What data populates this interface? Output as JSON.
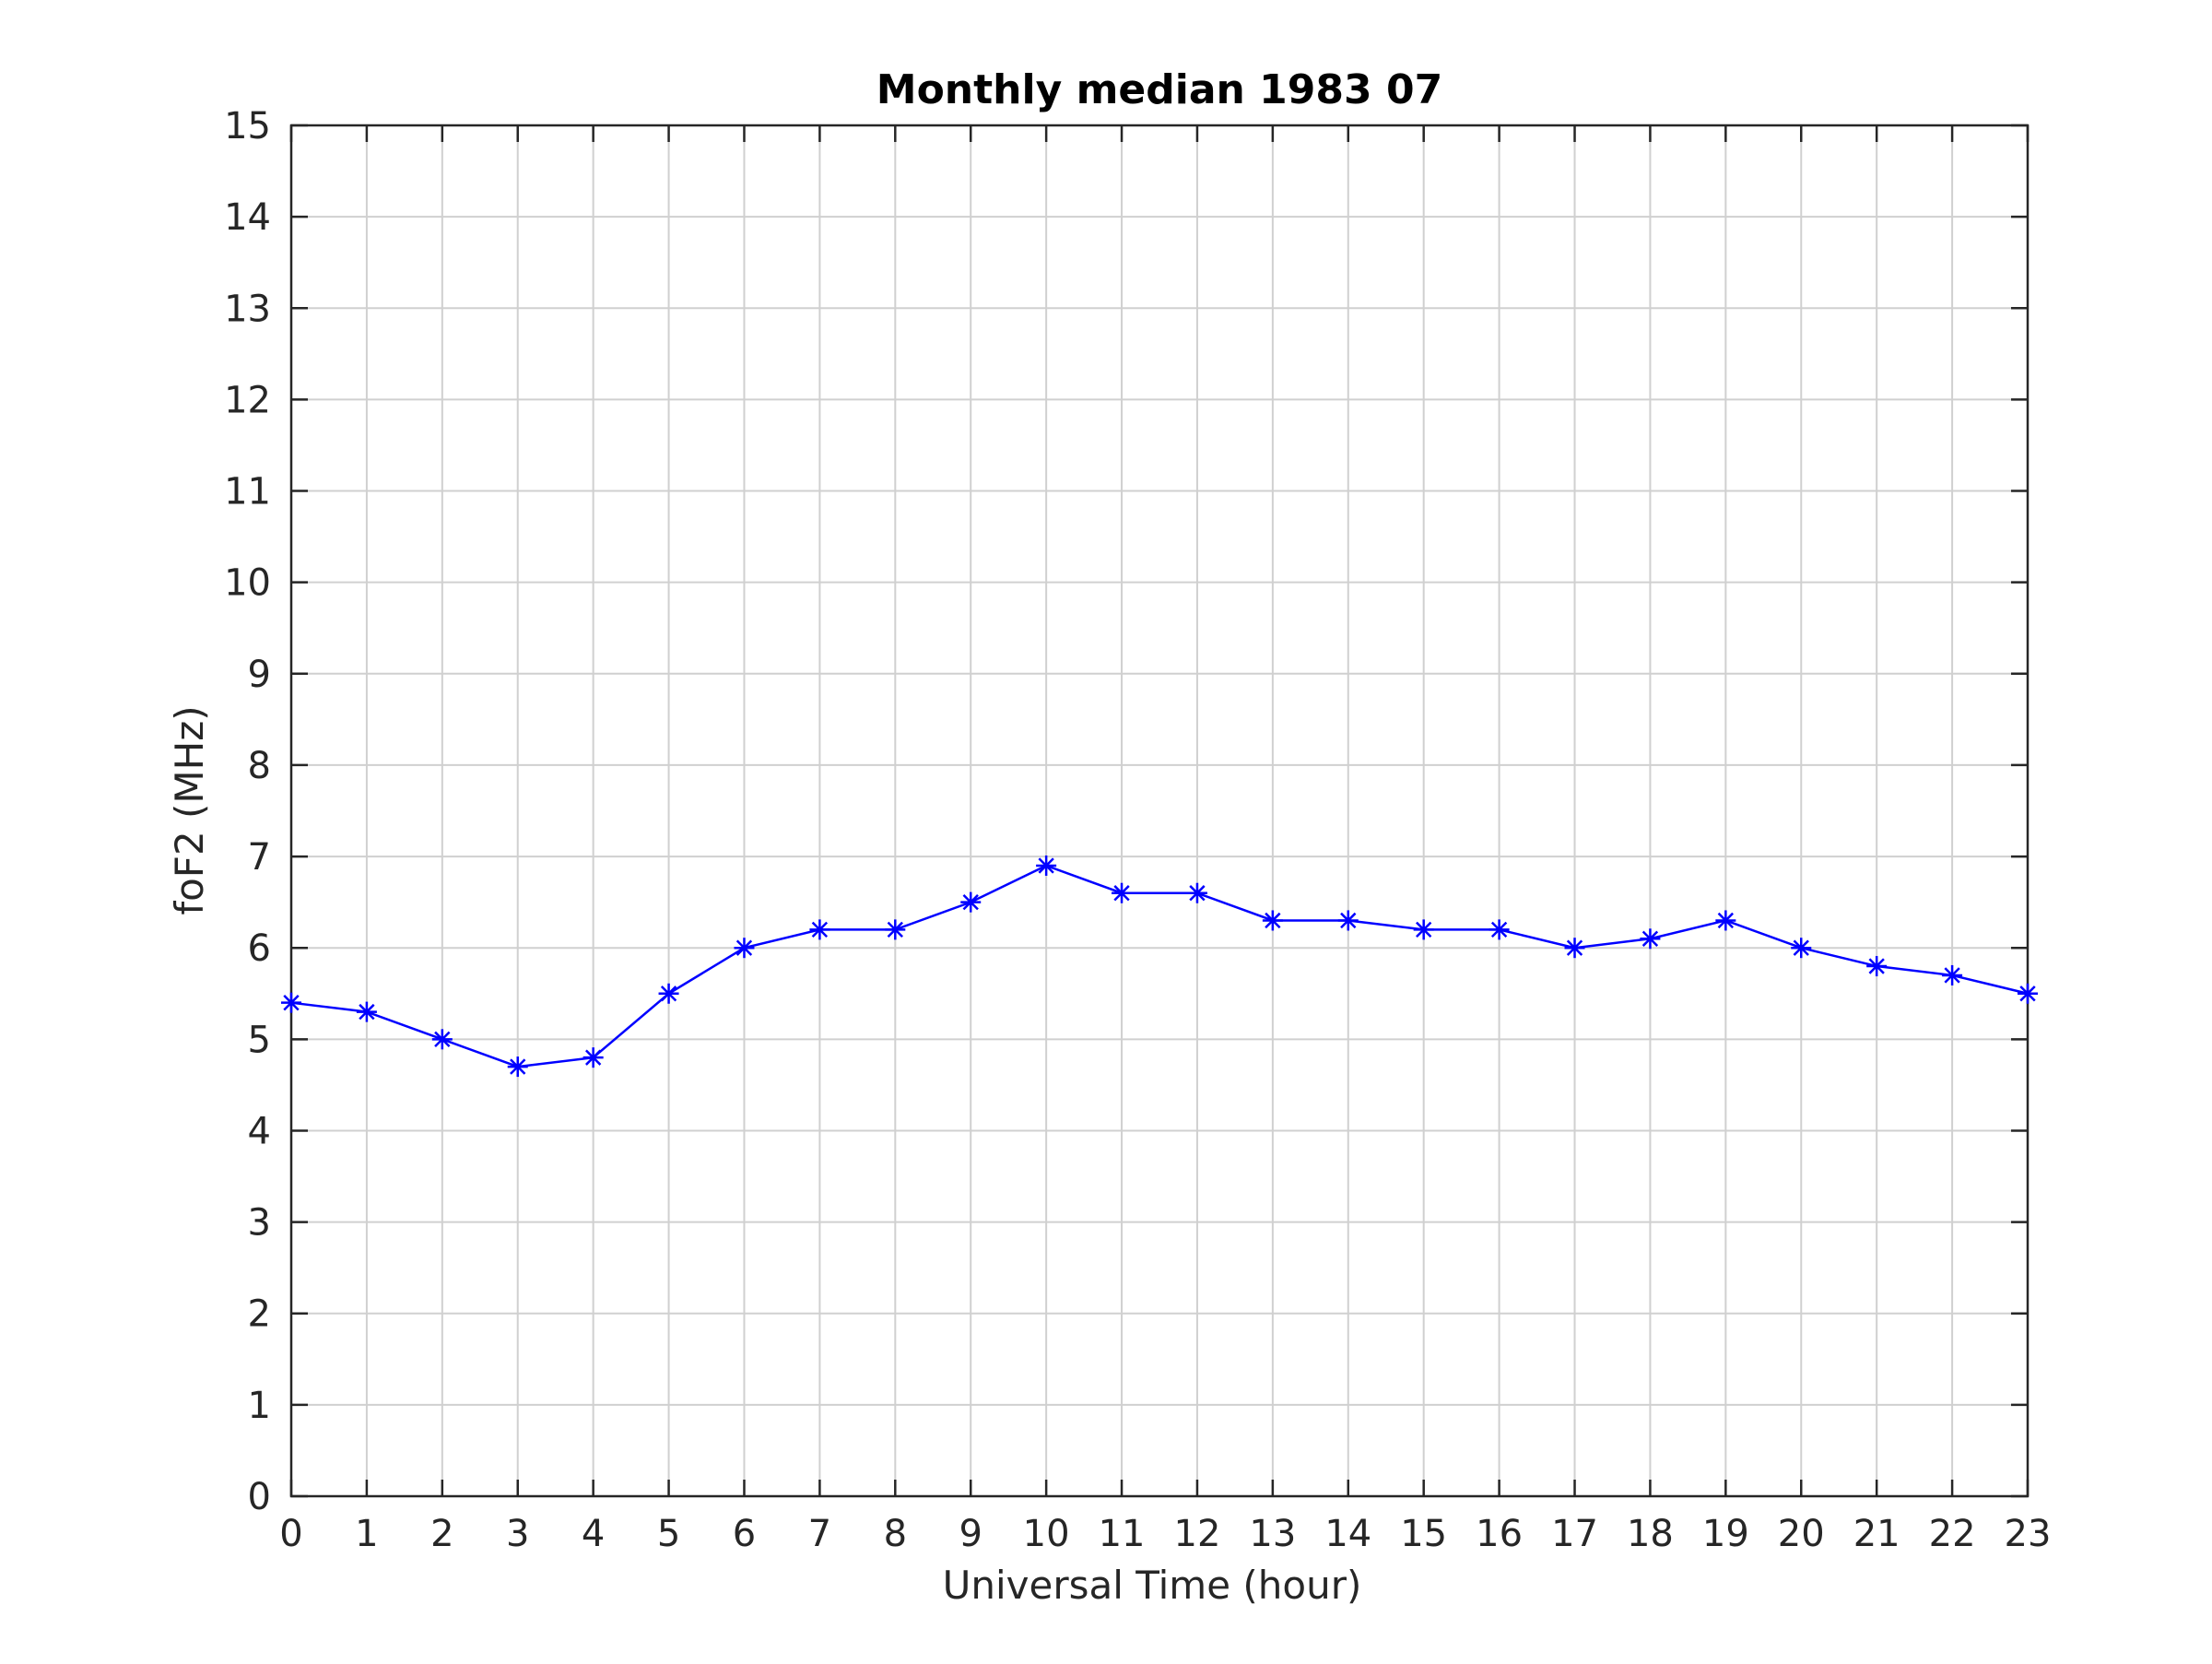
{
  "chart_data": {
    "type": "line",
    "title": "Monthly median 1983 07",
    "xlabel": "Universal Time (hour)",
    "ylabel": "foF2 (MHz)",
    "xlim": [
      0,
      23
    ],
    "ylim": [
      0,
      15
    ],
    "x_ticks": [
      "0",
      "1",
      "2",
      "3",
      "4",
      "5",
      "6",
      "7",
      "8",
      "9",
      "10",
      "11",
      "12",
      "13",
      "14",
      "15",
      "16",
      "17",
      "18",
      "19",
      "20",
      "21",
      "22",
      "23"
    ],
    "y_ticks": [
      "0",
      "1",
      "2",
      "3",
      "4",
      "5",
      "6",
      "7",
      "8",
      "9",
      "10",
      "11",
      "12",
      "13",
      "14",
      "15"
    ],
    "grid": true,
    "marker": "asterisk",
    "series": [
      {
        "color": "#0000ff",
        "x": [
          0,
          1,
          2,
          3,
          4,
          5,
          6,
          7,
          8,
          9,
          10,
          11,
          12,
          13,
          14,
          15,
          16,
          17,
          18,
          19,
          20,
          21,
          22,
          23
        ],
        "values": [
          5.4,
          5.3,
          5.0,
          4.7,
          4.8,
          5.5,
          6.0,
          6.2,
          6.2,
          6.5,
          6.9,
          6.6,
          6.6,
          6.3,
          6.3,
          6.2,
          6.2,
          6.0,
          6.1,
          6.3,
          6.0,
          5.8,
          5.7,
          5.5
        ]
      }
    ]
  }
}
